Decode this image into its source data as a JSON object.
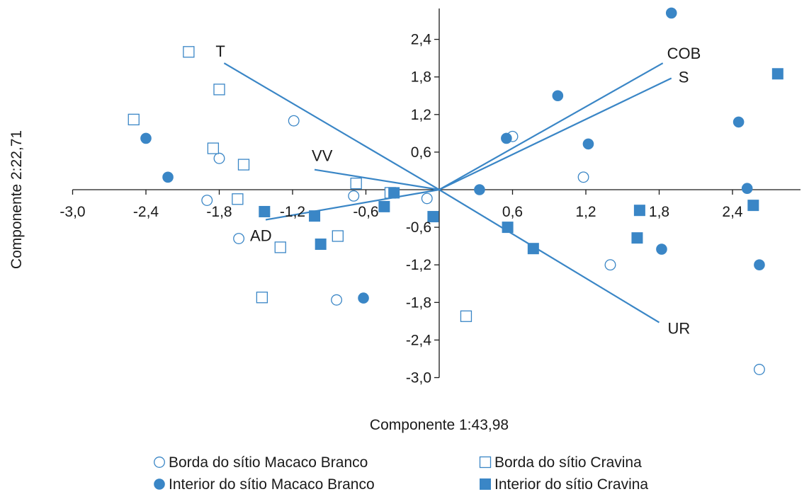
{
  "chart_data": {
    "type": "scatter",
    "title": "",
    "xlabel": "Componente 1:43,98",
    "ylabel": "Componente 2:22,71",
    "xlim": [
      -3.0,
      3.0
    ],
    "ylim": [
      -3.0,
      2.9
    ],
    "x_ticks": [
      -3.0,
      -2.4,
      -1.8,
      -1.2,
      -0.6,
      0.6,
      1.2,
      1.8,
      2.4
    ],
    "x_tick_labels": [
      "-3,0",
      "-2,4",
      "-1,8",
      "-1,2",
      "-0,6",
      "0,6",
      "1,2",
      "1,8",
      "2,4"
    ],
    "y_ticks": [
      2.4,
      1.8,
      1.2,
      0.6,
      -0.6,
      -1.2,
      -1.8,
      -2.4,
      -3.0
    ],
    "y_tick_labels": [
      "2,4",
      "1,8",
      "1,2",
      "0,6",
      "-0,6",
      "-1,2",
      "-1,8",
      "-2,4",
      "-3,0"
    ],
    "grid": false,
    "legend_position": "bottom",
    "colors": {
      "series": "#3a86c6",
      "vectors": "#3a86c6",
      "axis": "#1a1a1a"
    },
    "series": [
      {
        "name": "Borda do sítio Macaco Branco",
        "marker": "circle-open",
        "points": [
          [
            -1.19,
            1.1
          ],
          [
            -1.8,
            0.5
          ],
          [
            -1.9,
            -0.17
          ],
          [
            -1.64,
            -0.78
          ],
          [
            -0.7,
            -0.1
          ],
          [
            -0.1,
            -0.14
          ],
          [
            -0.84,
            -1.76
          ],
          [
            0.6,
            0.85
          ],
          [
            1.18,
            0.2
          ],
          [
            1.4,
            -1.2
          ],
          [
            2.62,
            -2.87
          ]
        ]
      },
      {
        "name": "Borda do sítio Cravina",
        "marker": "square-open",
        "points": [
          [
            -2.05,
            2.2
          ],
          [
            -1.8,
            1.6
          ],
          [
            -2.5,
            1.12
          ],
          [
            -1.85,
            0.66
          ],
          [
            -1.6,
            0.4
          ],
          [
            -1.65,
            -0.15
          ],
          [
            -0.68,
            0.1
          ],
          [
            -0.4,
            -0.05
          ],
          [
            -1.3,
            -0.92
          ],
          [
            -0.83,
            -0.74
          ],
          [
            -1.45,
            -1.72
          ],
          [
            0.22,
            -2.02
          ]
        ]
      },
      {
        "name": "Interior do sítio Macaco Branco",
        "marker": "circle-filled",
        "points": [
          [
            -2.4,
            0.82
          ],
          [
            -2.22,
            0.2
          ],
          [
            -0.62,
            -1.73
          ],
          [
            0.33,
            0.0
          ],
          [
            0.55,
            0.82
          ],
          [
            0.97,
            1.5
          ],
          [
            1.22,
            0.73
          ],
          [
            1.82,
            -0.95
          ],
          [
            1.9,
            2.82
          ],
          [
            2.45,
            1.08
          ],
          [
            2.52,
            0.02
          ],
          [
            2.62,
            -1.2
          ]
        ]
      },
      {
        "name": "Interior do sítio Cravina",
        "marker": "square-filled",
        "points": [
          [
            -1.43,
            -0.35
          ],
          [
            -1.02,
            -0.42
          ],
          [
            -0.97,
            -0.87
          ],
          [
            -0.45,
            -0.27
          ],
          [
            -0.37,
            -0.05
          ],
          [
            -0.05,
            -0.43
          ],
          [
            0.56,
            -0.6
          ],
          [
            0.77,
            -0.94
          ],
          [
            1.62,
            -0.77
          ],
          [
            1.64,
            -0.33
          ],
          [
            2.57,
            -0.25
          ],
          [
            2.77,
            1.85
          ]
        ]
      }
    ],
    "vectors": [
      {
        "label": "T",
        "end": [
          -1.76,
          2.02
        ]
      },
      {
        "label": "COB",
        "end": [
          1.83,
          2.02
        ]
      },
      {
        "label": "S",
        "end": [
          1.9,
          1.78
        ]
      },
      {
        "label": "VV",
        "end": [
          -1.02,
          0.32
        ]
      },
      {
        "label": "AD",
        "end": [
          -1.42,
          -0.48
        ]
      },
      {
        "label": "UR",
        "end": [
          1.8,
          -2.12
        ]
      }
    ]
  }
}
